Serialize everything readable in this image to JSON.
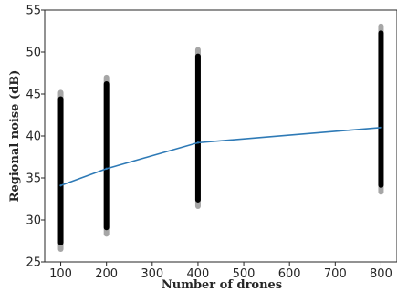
{
  "chart_data": {
    "type": "scatter",
    "title": "",
    "xlabel": "Number of drones",
    "ylabel": "Regional noise (dB)",
    "xlim": [
      65,
      835
    ],
    "ylim": [
      25,
      55
    ],
    "xticks": [
      100,
      200,
      300,
      400,
      500,
      600,
      700,
      800
    ],
    "yticks": [
      25,
      30,
      35,
      40,
      45,
      50,
      55
    ],
    "grid": false,
    "scatter_series": [
      {
        "x": 100,
        "y_min": 26.2,
        "y_max": 45.5,
        "color": "#000000"
      },
      {
        "x": 200,
        "y_min": 28.0,
        "y_max": 47.3,
        "color": "#000000"
      },
      {
        "x": 400,
        "y_min": 31.3,
        "y_max": 50.6,
        "color": "#000000"
      },
      {
        "x": 800,
        "y_min": 33.0,
        "y_max": 53.4,
        "color": "#000000"
      }
    ],
    "line_series": {
      "x": [
        100,
        200,
        400,
        800
      ],
      "y": [
        34.1,
        36.1,
        39.2,
        41.0
      ],
      "color": "#2e7ab6"
    }
  }
}
